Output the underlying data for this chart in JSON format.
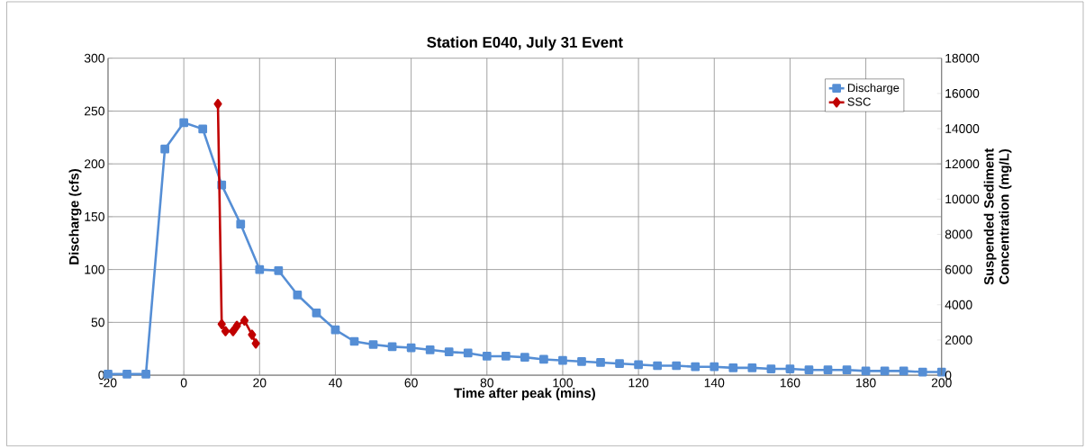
{
  "chart_data": {
    "type": "line",
    "title": "Station E040, July 31 Event",
    "xlabel": "Time after peak (mins)",
    "ylabel": "Discharge (cfs)",
    "y2label": "Suspended Sediment Concentration (mg/L)",
    "xlim": [
      -20,
      200
    ],
    "xticks": [
      -20,
      0,
      20,
      40,
      60,
      80,
      100,
      120,
      140,
      160,
      180,
      200
    ],
    "ylim": [
      0,
      300
    ],
    "yticks": [
      0,
      50,
      100,
      150,
      200,
      250,
      300
    ],
    "y2lim": [
      0,
      18000
    ],
    "y2ticks": [
      0,
      2000,
      4000,
      6000,
      8000,
      10000,
      12000,
      14000,
      16000,
      18000
    ],
    "grid": true,
    "legend": "top right",
    "series": [
      {
        "name": "Discharge",
        "color": "#558ed5",
        "marker": "square",
        "x": [
          -20,
          -15,
          -10,
          -5,
          0,
          5,
          10,
          15,
          20,
          25,
          30,
          35,
          40,
          45,
          50,
          55,
          60,
          65,
          70,
          75,
          80,
          85,
          90,
          95,
          100,
          105,
          110,
          115,
          120,
          125,
          130,
          135,
          140,
          145,
          150,
          155,
          160,
          165,
          170,
          175,
          180,
          185,
          190,
          195,
          200
        ],
        "values": [
          1,
          1,
          1,
          214,
          239,
          233,
          180,
          143,
          100,
          99,
          76,
          59,
          43,
          32,
          29,
          27,
          26,
          24,
          22,
          21,
          18,
          18,
          17,
          15,
          14,
          13,
          12,
          11,
          10,
          9,
          9,
          8,
          8,
          7,
          7,
          6,
          6,
          5,
          5,
          5,
          4,
          4,
          4,
          3,
          3
        ]
      },
      {
        "name": "SSC",
        "color": "#c00000",
        "marker": "diamond",
        "axis": "y2",
        "x": [
          9,
          10,
          11,
          13,
          14,
          16,
          18,
          19
        ],
        "values": [
          15400,
          2900,
          2500,
          2500,
          2800,
          3100,
          2300,
          1800
        ]
      }
    ]
  }
}
